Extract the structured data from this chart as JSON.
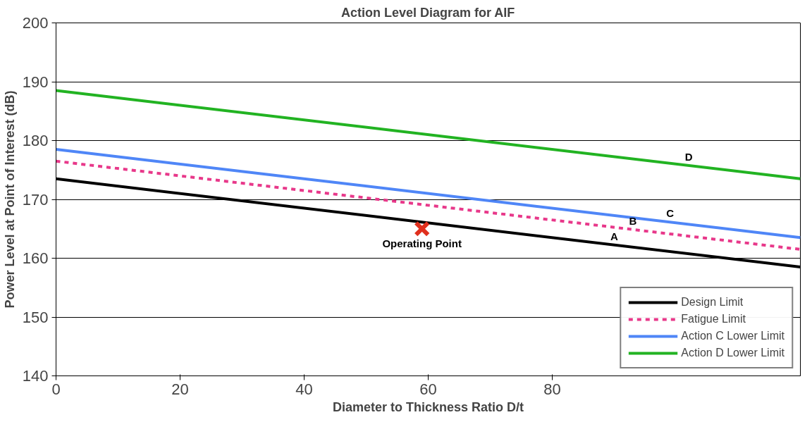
{
  "chart_data": {
    "type": "line",
    "title": "Action Level Diagram for AIF",
    "xlabel": "Diameter to Thickness Ratio D/t",
    "ylabel": "Power Level at Point of Interest (dB)",
    "xlim": [
      0,
      120
    ],
    "xticks": [
      0,
      20,
      40,
      60,
      80
    ],
    "ylim": [
      140,
      200
    ],
    "yticks": [
      140,
      150,
      160,
      170,
      180,
      190,
      200
    ],
    "grid": "y",
    "legend": "bottom right",
    "series": [
      {
        "name": "Design Limit",
        "color": "#000000",
        "x": [
          0,
          120
        ],
        "values": [
          173.5,
          158.5
        ],
        "line_style": "solid"
      },
      {
        "name": "Fatigue Limit",
        "color": "#e8388a",
        "x": [
          0,
          120
        ],
        "values": [
          176.5,
          161.5
        ],
        "line_style": "dashed"
      },
      {
        "name": "Action C Lower Limit",
        "color": "#4f86f7",
        "x": [
          0,
          120
        ],
        "values": [
          178.5,
          163.5
        ],
        "line_style": "solid"
      },
      {
        "name": "Action D Lower Limit",
        "color": "#22b322",
        "x": [
          0,
          120
        ],
        "values": [
          188.5,
          173.5
        ],
        "line_style": "solid"
      },
      {
        "type": "scatter",
        "color": "#e0301e",
        "x": [
          59
        ],
        "values": [
          165
        ],
        "marker": "cross"
      }
    ],
    "annotations": [
      {
        "text": "Operating Point",
        "x": 59,
        "y": 165
      },
      {
        "text": "A",
        "x": 90,
        "y": 162.25
      },
      {
        "text": "B",
        "x": 93,
        "y": 164.875
      },
      {
        "text": "C",
        "x": 99,
        "y": 166.125
      },
      {
        "text": "D",
        "x": 102,
        "y": 175.75
      }
    ]
  }
}
